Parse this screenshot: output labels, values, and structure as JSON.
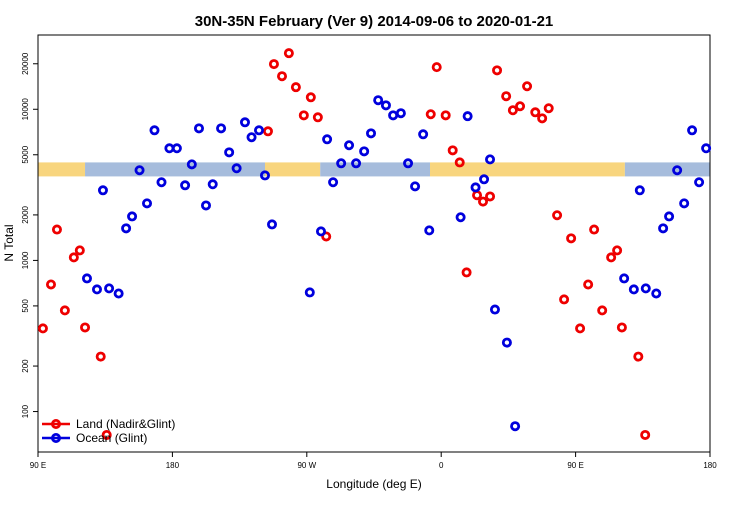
{
  "chart_data": {
    "type": "scatter",
    "title": "30N-35N February (Ver 9)   2014-09-06 to 2020-01-21",
    "x_label": "Longitude (deg E)",
    "y_label": "N Total",
    "xlim": [
      90,
      540
    ],
    "xticks": [
      {
        "value": 90,
        "label": "90 E"
      },
      {
        "value": 180,
        "label": "180"
      },
      {
        "value": 270,
        "label": "90 W"
      },
      {
        "value": 360,
        "label": "0"
      },
      {
        "value": 450,
        "label": "90 E"
      },
      {
        "value": 540,
        "label": "180"
      }
    ],
    "ylim": [
      54,
      31000
    ],
    "log_y": true,
    "yticks": [
      100,
      200,
      500,
      1000,
      2000,
      5000,
      10000,
      20000
    ],
    "legend": "bottom left",
    "surface_band": {
      "value": 4000,
      "segments": [
        {
          "from": 90,
          "to": 121.5,
          "color": "#f8d57e"
        },
        {
          "from": 121.5,
          "to": 242,
          "color": "#a6bcdc"
        },
        {
          "from": 242,
          "to": 279,
          "color": "#f8d57e"
        },
        {
          "from": 279,
          "to": 352.5,
          "color": "#a6bcdc"
        },
        {
          "from": 352.5,
          "to": 483,
          "color": "#f8d57e"
        },
        {
          "from": 483,
          "to": 540,
          "color": "#a6bcdc"
        }
      ]
    },
    "series": [
      {
        "name": "Land (Nadir&Glint)",
        "color": "#ee0000",
        "x": [
          93.3,
          98.7,
          102.7,
          108,
          114,
          118,
          121.5,
          132,
          136,
          244,
          248,
          253.4,
          258,
          262.7,
          268,
          272.7,
          277.4,
          283,
          353,
          357,
          363,
          367.7,
          372.4,
          377,
          384,
          388,
          392.7,
          397.4,
          403.5,
          408,
          412.8,
          417.5,
          423,
          427.6,
          432,
          437.6,
          442.3,
          447,
          453,
          458.4,
          462.4,
          467.8,
          473.8,
          477.8,
          481,
          492,
          496.6
        ],
        "values": [
          355,
          693,
          1600,
          467,
          1047,
          1165,
          360,
          231,
          70,
          7150,
          19900,
          16550,
          23500,
          14000,
          9120,
          12000,
          8850,
          1440,
          9270,
          19000,
          9120,
          5350,
          4450,
          833,
          2700,
          2450,
          2650,
          18100,
          12200,
          9850,
          10470,
          14200,
          9550,
          8710,
          10160,
          1990,
          552,
          1400,
          355,
          693,
          1600,
          467,
          1047,
          1165,
          360,
          231,
          70
        ]
      },
      {
        "name": "Ocean (Glint)",
        "color": "#0000dd",
        "x": [
          122.8,
          129.5,
          133.5,
          137.6,
          144,
          149,
          153,
          158,
          163,
          168,
          172.7,
          178,
          183,
          188.5,
          193,
          197.8,
          202.5,
          207,
          212.6,
          218,
          223,
          228.6,
          233,
          238,
          242,
          246.7,
          272,
          279.5,
          283.6,
          287.6,
          293,
          298.3,
          303,
          308.4,
          313,
          317.8,
          323,
          327.8,
          333,
          337.8,
          342.5,
          347.9,
          352,
          373,
          377.7,
          383,
          388.7,
          392.7,
          396,
          404,
          409.5,
          482.5,
          489,
          493,
          497,
          504,
          508.6,
          512.6,
          518,
          522.7,
          528,
          532.7,
          537.4
        ],
        "values": [
          760,
          643,
          2910,
          653,
          604,
          1630,
          1955,
          3950,
          2385,
          7260,
          3290,
          5520,
          5520,
          3140,
          4320,
          7480,
          2310,
          3190,
          7480,
          5190,
          4070,
          8200,
          6530,
          7260,
          3650,
          1730,
          614,
          1556,
          6330,
          3290,
          4390,
          5780,
          4390,
          5270,
          6930,
          11480,
          10620,
          9120,
          9420,
          4390,
          3090,
          6830,
          1580,
          1930,
          9000,
          3040,
          3440,
          4660,
          473,
          286,
          80,
          760,
          643,
          2910,
          653,
          604,
          1630,
          1955,
          3950,
          2385,
          7260,
          3290,
          5520
        ]
      }
    ]
  }
}
